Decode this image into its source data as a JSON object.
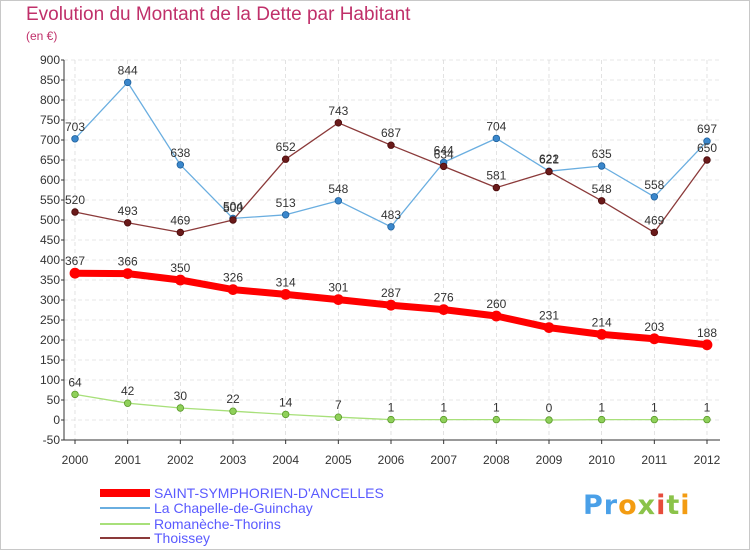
{
  "title": "Evolution du Montant de la Dette par Habitant",
  "unit": "(en €)",
  "logo": "Proxiti",
  "colors": {
    "title": "#c0306a",
    "grid": "#d0d0d0",
    "axis": "#333333",
    "legend_text": "#5a5aff"
  },
  "chart_data": {
    "type": "line",
    "title": "Evolution du Montant de la Dette par Habitant",
    "subtitle": "(en €)",
    "xlabel": "",
    "ylabel": "",
    "ylim": [
      -50,
      900
    ],
    "yticks": [
      -50,
      0,
      50,
      100,
      150,
      200,
      250,
      300,
      350,
      400,
      450,
      500,
      550,
      600,
      650,
      700,
      750,
      800,
      850,
      900
    ],
    "grid": true,
    "legend_position": "bottom-left",
    "categories": [
      "2000",
      "2001",
      "2002",
      "2003",
      "2004",
      "2005",
      "2006",
      "2007",
      "2008",
      "2009",
      "2010",
      "2011",
      "2012"
    ],
    "series": [
      {
        "name": "SAINT-SYMPHORIEN-D'ANCELLES",
        "color": "#ff0000",
        "width": 7,
        "marker": "#ff0000",
        "markerStroke": "#ff0000",
        "markerR": 5,
        "values": [
          367,
          366,
          350,
          326,
          314,
          301,
          287,
          276,
          260,
          231,
          214,
          203,
          188
        ]
      },
      {
        "name": "La Chapelle-de-Guinchay",
        "color": "#6aaee0",
        "width": 1.3,
        "marker": "#3a87cc",
        "markerStroke": "#1e5f9a",
        "markerR": 3.3,
        "values": [
          703,
          844,
          638,
          504,
          513,
          548,
          483,
          644,
          704,
          622,
          635,
          558,
          697
        ]
      },
      {
        "name": "Romanèche-Thorins",
        "color": "#a8e07a",
        "width": 1.3,
        "marker": "#8fd05a",
        "markerStroke": "#5a9a2a",
        "markerR": 3.3,
        "values": [
          64,
          42,
          30,
          22,
          14,
          7,
          1,
          1,
          1,
          0,
          1,
          1,
          1
        ]
      },
      {
        "name": "Thoissey",
        "color": "#8b3a3a",
        "width": 1.3,
        "marker": "#6a1a1a",
        "markerStroke": "#4a0a0a",
        "markerR": 3.3,
        "values": [
          520,
          493,
          469,
          500,
          652,
          743,
          687,
          634,
          581,
          621,
          548,
          469,
          650
        ]
      }
    ]
  }
}
